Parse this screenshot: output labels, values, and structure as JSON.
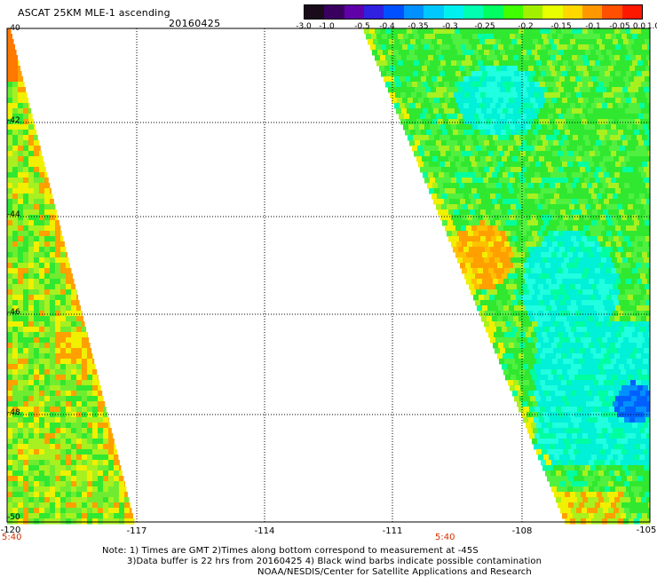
{
  "header": {
    "title": "ASCAT 25KM MLE-1 ascending",
    "date": "20160425"
  },
  "colorbar": {
    "colors": [
      "#1a0a1a",
      "#3a0060",
      "#6000a8",
      "#3020e0",
      "#0050ff",
      "#0090ff",
      "#00c8ff",
      "#00f0f0",
      "#00ffb0",
      "#00ff60",
      "#40ff00",
      "#a0f000",
      "#e8ff00",
      "#ffd800",
      "#ff9800",
      "#ff5000",
      "#ff1800"
    ],
    "tick_labels": [
      "-3.0",
      "-1.0",
      "-0.5",
      "-0.4",
      "-0.35",
      "-0.3",
      "-0.25",
      "-0.2",
      "-0.15",
      "-0.1",
      "-0.05",
      "0.0",
      "1.0"
    ]
  },
  "map": {
    "lat_labels": [
      "-40",
      "-42",
      "-44",
      "-46",
      "-48",
      "-50"
    ],
    "lon_labels": [
      "-120",
      "-117",
      "-114",
      "-111",
      "-108",
      "-105"
    ],
    "time_labels": [
      "5:40",
      "5:40"
    ],
    "field_description_colors": {
      "green": "#30e830",
      "yellow_green": "#a8f020",
      "yellow": "#f0f000",
      "orange": "#ffa000",
      "dark_orange": "#ff7800",
      "cyan": "#00f0d8",
      "light_cyan": "#20ffe0",
      "blue": "#0060ff"
    }
  },
  "notes": {
    "line1": "Note: 1) Times are GMT 2)Times along bottom correspond to measurement at -45S",
    "line2": "3)Data buffer is 22 hrs from 20160425 4) Black wind barbs indicate possible contamination",
    "line3": "NOAA/NESDIS/Center for Satellite Applications and Research"
  }
}
